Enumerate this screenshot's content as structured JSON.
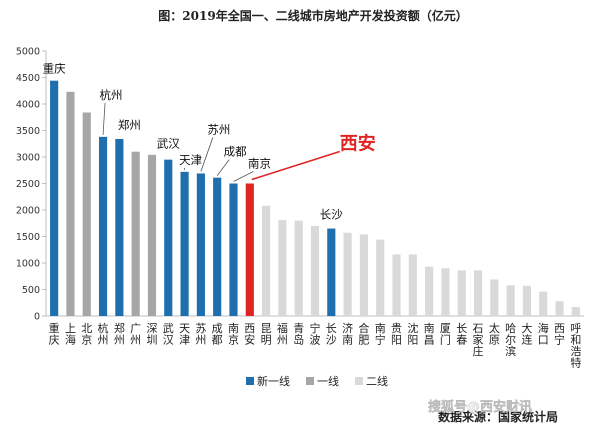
{
  "chart_data": {
    "type": "bar",
    "title": "图：2019年全国一、二线城市房地产开发投资额（亿元）",
    "ylim": [
      0,
      5000
    ],
    "yticks": [
      0,
      500,
      1000,
      1500,
      2000,
      2500,
      3000,
      3500,
      4000,
      4500,
      5000
    ],
    "grid": false,
    "legend_position": "bottom",
    "categories": [
      "重庆",
      "上海",
      "北京",
      "杭州",
      "郑州",
      "广州",
      "深圳",
      "武汉",
      "天津",
      "苏州",
      "成都",
      "南京",
      "西安",
      "昆明",
      "福州",
      "青岛",
      "宁波",
      "长沙",
      "济南",
      "合肥",
      "南宁",
      "贵阳",
      "沈阳",
      "南昌",
      "厦门",
      "长春",
      "石家庄",
      "太原",
      "哈尔滨",
      "大连",
      "海口",
      "西宁",
      "呼和浩特"
    ],
    "values": [
      4440,
      4230,
      3840,
      3380,
      3340,
      3100,
      3040,
      2950,
      2720,
      2690,
      2610,
      2500,
      2500,
      2080,
      1810,
      1800,
      1700,
      1650,
      1570,
      1540,
      1440,
      1160,
      1160,
      930,
      900,
      860,
      860,
      690,
      580,
      570,
      460,
      280,
      170
    ],
    "groups": [
      "new",
      "first",
      "first",
      "new",
      "new",
      "first",
      "first",
      "new",
      "new",
      "new",
      "new",
      "new",
      "highlight",
      "second",
      "second",
      "second",
      "second",
      "new",
      "second",
      "second",
      "second",
      "second",
      "second",
      "second",
      "second",
      "second",
      "second",
      "second",
      "second",
      "second",
      "second",
      "second",
      "second"
    ],
    "colors": {
      "new": "#1f6fae",
      "first": "#a6a6a6",
      "second": "#d9d9d9",
      "highlight": "#e02424",
      "callout": "#e02424"
    },
    "legend": [
      {
        "key": "new",
        "label": "新一线"
      },
      {
        "key": "first",
        "label": "一线"
      },
      {
        "key": "second",
        "label": "二线"
      }
    ],
    "annotations": [
      {
        "city": "重庆",
        "label": "重庆"
      },
      {
        "city": "杭州",
        "label": "杭州"
      },
      {
        "city": "郑州",
        "label": "郑州"
      },
      {
        "city": "武汉",
        "label": "武汉"
      },
      {
        "city": "天津",
        "label": "天津"
      },
      {
        "city": "苏州",
        "label": "苏州"
      },
      {
        "city": "成都",
        "label": "成都"
      },
      {
        "city": "南京",
        "label": "南京"
      },
      {
        "city": "长沙",
        "label": "长沙"
      }
    ],
    "callout": {
      "city": "西安",
      "label": "西安"
    },
    "footer_source": "数据来源：国家统计局",
    "footer_watermark": "搜狐号@西安财讯"
  }
}
